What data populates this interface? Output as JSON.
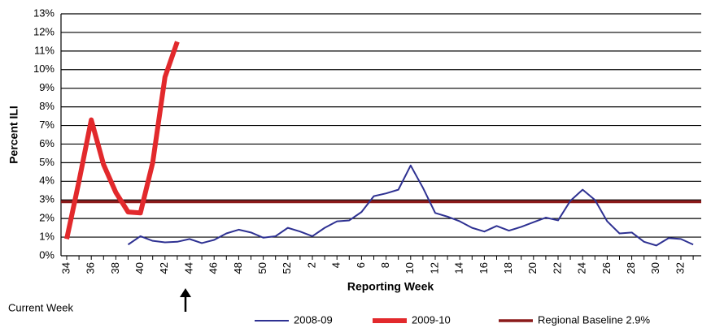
{
  "chart_data": {
    "type": "line",
    "y_label": "Percent ILI",
    "x_label": "Reporting Week",
    "annotation": "Current Week",
    "categories": [
      "34",
      null,
      "36",
      null,
      "38",
      null,
      "40",
      null,
      "42",
      null,
      "44",
      null,
      "46",
      null,
      "48",
      null,
      "50",
      null,
      "52",
      null,
      "2",
      null,
      "4",
      null,
      "6",
      null,
      "8",
      null,
      "10",
      null,
      "12",
      null,
      "14",
      null,
      "16",
      null,
      "18",
      null,
      "20",
      null,
      "22",
      null,
      "24",
      null,
      "26",
      null,
      "28",
      null,
      "30",
      null,
      "32",
      null
    ],
    "series": [
      {
        "name": "2008-09",
        "color": "#2e3192",
        "width": 2,
        "values": [
          null,
          null,
          null,
          null,
          null,
          0.6,
          1.05,
          0.8,
          0.72,
          0.75,
          0.9,
          0.68,
          0.85,
          1.2,
          1.4,
          1.25,
          0.97,
          1.05,
          1.5,
          1.3,
          1.05,
          1.5,
          1.85,
          1.9,
          2.35,
          3.2,
          3.35,
          3.55,
          4.85,
          3.65,
          2.3,
          2.1,
          1.85,
          1.5,
          1.3,
          1.6,
          1.35,
          1.55,
          1.8,
          2.05,
          1.9,
          2.95,
          3.55,
          3.0,
          1.85,
          1.2,
          1.25,
          0.75,
          0.55,
          0.95,
          0.9,
          0.6
        ]
      },
      {
        "name": "2009-10",
        "color": "#e2292c",
        "width": 6,
        "values": [
          0.9,
          4.0,
          7.3,
          4.9,
          3.4,
          2.35,
          2.3,
          5.0,
          9.6,
          11.5,
          null,
          null,
          null,
          null,
          null,
          null,
          null,
          null,
          null,
          null,
          null,
          null,
          null,
          null,
          null,
          null,
          null,
          null,
          null,
          null,
          null,
          null,
          null,
          null,
          null,
          null,
          null,
          null,
          null,
          null,
          null,
          null,
          null,
          null,
          null,
          null,
          null,
          null,
          null,
          null,
          null,
          null
        ]
      }
    ],
    "baseline": {
      "name": "Regional Baseline 2.9%",
      "value": 2.9,
      "color": "#8b1a1a"
    },
    "ylim": [
      0,
      13
    ],
    "yticks": [
      {
        "value": 0,
        "label": "0%"
      },
      {
        "value": 1,
        "label": "1%"
      },
      {
        "value": 2,
        "label": "2%"
      },
      {
        "value": 3,
        "label": "3%"
      },
      {
        "value": 4,
        "label": "4%"
      },
      {
        "value": 5,
        "label": "5%"
      },
      {
        "value": 6,
        "label": "6%"
      },
      {
        "value": 7,
        "label": "7%"
      },
      {
        "value": 8,
        "label": "8%"
      },
      {
        "value": 9,
        "label": "9%"
      },
      {
        "value": 10,
        "label": "10%"
      },
      {
        "value": 11,
        "label": "11%"
      },
      {
        "value": 12,
        "label": "12%"
      },
      {
        "value": 13,
        "label": "13%"
      }
    ],
    "grid": true
  }
}
